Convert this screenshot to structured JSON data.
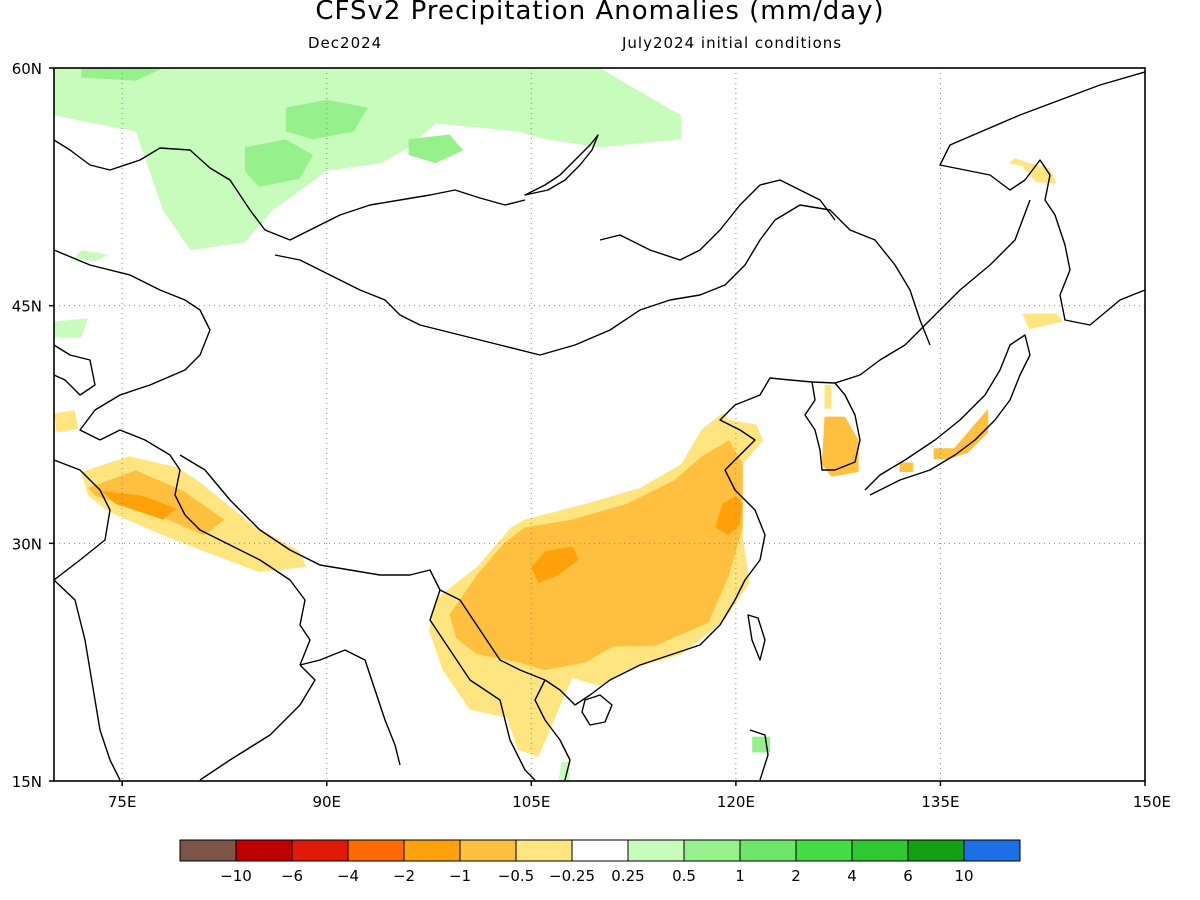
{
  "header": {
    "title": "CFSv2 Precipitation Anomalies (mm/day)",
    "subtitle_left": "Dec2024",
    "subtitle_right": "July2024 initial conditions"
  },
  "map": {
    "lat_ticks": [
      {
        "value": 60,
        "label": "60N"
      },
      {
        "value": 45,
        "label": "45N"
      },
      {
        "value": 30,
        "label": "30N"
      },
      {
        "value": 15,
        "label": "15N"
      }
    ],
    "lon_ticks": [
      {
        "value": 75,
        "label": "75E"
      },
      {
        "value": 90,
        "label": "90E"
      },
      {
        "value": 105,
        "label": "105E"
      },
      {
        "value": 120,
        "label": "120E"
      },
      {
        "value": 135,
        "label": "135E"
      },
      {
        "value": 150,
        "label": "150E"
      }
    ],
    "lon_range": [
      70,
      150
    ],
    "lat_range": [
      15,
      60
    ],
    "grid": "dotted"
  },
  "colorbar": {
    "colors": [
      "#7a5548",
      "#bf0000",
      "#e01a08",
      "#ff6a00",
      "#ffa10a",
      "#ffc040",
      "#ffe57f",
      "#ffffff",
      "#c8fcbc",
      "#96f08c",
      "#6ee66a",
      "#46dc46",
      "#30c830",
      "#14a014",
      "#1e6ee6"
    ],
    "labels": [
      "−10",
      "−6",
      "−4",
      "−2",
      "−1",
      "−0.5",
      "−0.25",
      "0.25",
      "0.5",
      "1",
      "2",
      "4",
      "6",
      "10"
    ]
  },
  "anomaly_regions": [
    {
      "name": "siberia-wet-band",
      "level": 0.5,
      "points": [
        [
          70,
          60
        ],
        [
          110,
          60
        ],
        [
          116,
          57
        ],
        [
          116,
          55.5
        ],
        [
          110,
          55
        ],
        [
          106,
          55.5
        ],
        [
          104,
          56
        ],
        [
          98,
          56.5
        ],
        [
          96,
          55
        ],
        [
          94,
          54
        ],
        [
          90,
          53.5
        ],
        [
          86,
          51
        ],
        [
          84,
          49
        ],
        [
          80,
          48.5
        ],
        [
          78,
          51
        ],
        [
          76,
          56
        ],
        [
          70,
          57
        ]
      ]
    },
    {
      "name": "siberia-wet-core-1",
      "level": 1,
      "points": [
        [
          87,
          57.5
        ],
        [
          90,
          58
        ],
        [
          93,
          57.5
        ],
        [
          92,
          56
        ],
        [
          89,
          55.5
        ],
        [
          87,
          56
        ]
      ]
    },
    {
      "name": "siberia-wet-core-2",
      "level": 1,
      "points": [
        [
          84,
          55
        ],
        [
          87,
          55.5
        ],
        [
          89,
          54.5
        ],
        [
          88,
          53
        ],
        [
          85,
          52.5
        ],
        [
          84,
          53.5
        ]
      ]
    },
    {
      "name": "siberia-wet-core-3",
      "level": 1,
      "points": [
        [
          96,
          55.5
        ],
        [
          99,
          55.8
        ],
        [
          100,
          54.8
        ],
        [
          98,
          54
        ],
        [
          96,
          54.5
        ]
      ]
    },
    {
      "name": "siberia-wet-core-4",
      "level": 1,
      "points": [
        [
          72,
          60
        ],
        [
          78,
          60
        ],
        [
          76,
          59.2
        ],
        [
          72,
          59.4
        ]
      ]
    },
    {
      "name": "kazakh-wet-spot",
      "level": 0.5,
      "points": [
        [
          72,
          48.5
        ],
        [
          74,
          48.2
        ],
        [
          73,
          47.8
        ],
        [
          71.5,
          48
        ]
      ]
    },
    {
      "name": "caspian-wet-spot",
      "level": 0.5,
      "points": [
        [
          70,
          44
        ],
        [
          72.5,
          44.2
        ],
        [
          72,
          43
        ],
        [
          70,
          43
        ]
      ]
    },
    {
      "name": "hainan-south-wet",
      "level": 0.5,
      "points": [
        [
          107.2,
          16.2
        ],
        [
          107.8,
          16.2
        ],
        [
          107.8,
          15
        ],
        [
          107,
          15
        ]
      ]
    },
    {
      "name": "luzon-wet",
      "level": 1,
      "points": [
        [
          121.2,
          17.8
        ],
        [
          122.5,
          17.8
        ],
        [
          122.5,
          16.8
        ],
        [
          121.2,
          16.8
        ]
      ]
    },
    {
      "name": "sw-dry-spot",
      "level": -0.25,
      "points": [
        [
          70,
          38.2
        ],
        [
          71.5,
          38.4
        ],
        [
          71.8,
          37.2
        ],
        [
          70.2,
          37.0
        ]
      ]
    },
    {
      "name": "himalaya-dry",
      "level": -0.25,
      "points": [
        [
          72,
          34.5
        ],
        [
          75.5,
          35.5
        ],
        [
          79,
          34.8
        ],
        [
          80.5,
          34
        ],
        [
          84.5,
          31.2
        ],
        [
          88,
          29.5
        ],
        [
          88.5,
          28.5
        ],
        [
          85,
          28.2
        ],
        [
          81,
          29.5
        ],
        [
          78,
          30.5
        ],
        [
          74,
          32
        ],
        [
          72.5,
          33
        ]
      ]
    },
    {
      "name": "himalaya-dry-mid",
      "level": -0.5,
      "points": [
        [
          72.5,
          33.5
        ],
        [
          76,
          34.6
        ],
        [
          79.5,
          33.3
        ],
        [
          82.5,
          31.5
        ],
        [
          81,
          30.5
        ],
        [
          77,
          32
        ],
        [
          73,
          33
        ]
      ]
    },
    {
      "name": "himalaya-dry-core",
      "level": -1,
      "points": [
        [
          73.5,
          33.3
        ],
        [
          76.5,
          33
        ],
        [
          79,
          32.2
        ],
        [
          78,
          31.5
        ],
        [
          74.5,
          32.5
        ]
      ]
    },
    {
      "name": "south-china-dry",
      "level": -0.25,
      "points": [
        [
          98,
          26.5
        ],
        [
          101,
          28.5
        ],
        [
          103.5,
          31
        ],
        [
          104.5,
          31.5
        ],
        [
          109,
          32.5
        ],
        [
          113,
          33.5
        ],
        [
          116,
          35
        ],
        [
          117.5,
          37.2
        ],
        [
          119,
          38.2
        ],
        [
          119.5,
          37.8
        ],
        [
          121.5,
          37.5
        ],
        [
          122,
          36.5
        ],
        [
          120.5,
          35
        ],
        [
          120.5,
          30.5
        ],
        [
          121,
          27.5
        ],
        [
          119,
          25
        ],
        [
          116,
          23
        ],
        [
          112,
          22
        ],
        [
          110,
          21
        ],
        [
          108,
          21.5
        ],
        [
          107,
          19.5
        ],
        [
          106,
          17.5
        ],
        [
          105.5,
          16.5
        ],
        [
          104,
          17
        ],
        [
          103.2,
          19
        ],
        [
          100.5,
          19.5
        ],
        [
          98.5,
          22
        ],
        [
          97.5,
          24.5
        ]
      ]
    },
    {
      "name": "south-china-dry-mid",
      "level": -0.5,
      "points": [
        [
          99,
          25.5
        ],
        [
          101,
          28
        ],
        [
          103,
          30
        ],
        [
          104.5,
          31
        ],
        [
          108,
          31.5
        ],
        [
          112,
          32.5
        ],
        [
          115.5,
          34
        ],
        [
          117.5,
          35.5
        ],
        [
          119.5,
          36.5
        ],
        [
          120.5,
          35
        ],
        [
          120.5,
          31
        ],
        [
          119.5,
          28
        ],
        [
          118,
          25
        ],
        [
          114,
          23.5
        ],
        [
          111,
          23.5
        ],
        [
          109,
          22.5
        ],
        [
          106,
          22
        ],
        [
          104,
          22.5
        ],
        [
          101,
          23
        ],
        [
          99.5,
          24
        ]
      ]
    },
    {
      "name": "south-china-dry-core",
      "level": -1,
      "points": [
        [
          105,
          28.5
        ],
        [
          106,
          29.5
        ],
        [
          108,
          29.8
        ],
        [
          108.5,
          29
        ],
        [
          107,
          28
        ],
        [
          105.5,
          27.5
        ]
      ]
    },
    {
      "name": "east-china-dry-core",
      "level": -1,
      "points": [
        [
          118.5,
          31
        ],
        [
          119,
          32.5
        ],
        [
          120,
          33
        ],
        [
          120.5,
          32.5
        ],
        [
          120.3,
          31.2
        ],
        [
          119.5,
          30.5
        ]
      ]
    },
    {
      "name": "korea-dry",
      "level": -0.25,
      "points": [
        [
          126.5,
          40
        ],
        [
          127,
          40
        ],
        [
          127,
          38.5
        ],
        [
          126.5,
          38.5
        ]
      ]
    },
    {
      "name": "korea-dry-core",
      "level": -0.5,
      "points": [
        [
          126.5,
          38
        ],
        [
          128,
          38
        ],
        [
          129,
          36.5
        ],
        [
          129,
          34.5
        ],
        [
          127,
          34.2
        ],
        [
          126.3,
          35
        ]
      ]
    },
    {
      "name": "japan-honshu-dry",
      "level": -0.5,
      "points": [
        [
          134.5,
          36
        ],
        [
          136,
          36
        ],
        [
          137.5,
          37.5
        ],
        [
          138.5,
          38.5
        ],
        [
          138.5,
          37
        ],
        [
          137,
          35.7
        ],
        [
          135.5,
          35.3
        ],
        [
          134.5,
          35.3
        ]
      ]
    },
    {
      "name": "japan-west-dry",
      "level": -0.5,
      "points": [
        [
          132,
          35.1
        ],
        [
          133,
          35.1
        ],
        [
          133,
          34.5
        ],
        [
          132,
          34.5
        ]
      ]
    },
    {
      "name": "hokkaido-dry",
      "level": -0.25,
      "points": [
        [
          141,
          44.5
        ],
        [
          143.5,
          44.5
        ],
        [
          144,
          44
        ],
        [
          141.5,
          43.5
        ]
      ]
    },
    {
      "name": "sakhalin-dry",
      "level": -0.25,
      "points": [
        [
          140,
          54
        ],
        [
          141,
          53.8
        ],
        [
          142,
          52.8
        ],
        [
          143.5,
          52.7
        ],
        [
          143,
          53.7
        ],
        [
          141.5,
          54
        ],
        [
          140.5,
          54.3
        ]
      ]
    }
  ]
}
